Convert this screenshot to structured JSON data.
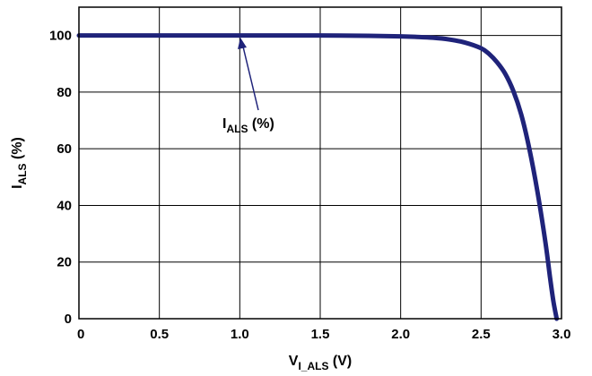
{
  "chart_data": {
    "type": "line",
    "xlabel": {
      "main": "V",
      "sub": "I_ALS",
      "unit": " (V)"
    },
    "ylabel": {
      "main": "I",
      "sub": "ALS",
      "unit": " (%)"
    },
    "xlim": [
      0,
      3.0
    ],
    "ylim": [
      0,
      110
    ],
    "xticks": [
      "0",
      "0.5",
      "1.0",
      "1.5",
      "2.0",
      "2.5",
      "3.0"
    ],
    "yticks": [
      "0",
      "20",
      "40",
      "60",
      "80",
      "100"
    ],
    "grid": true,
    "series": [
      {
        "color": "#1f237a",
        "x": [
          0,
          0.5,
          1.0,
          1.5,
          1.8,
          2.0,
          2.1,
          2.2,
          2.3,
          2.4,
          2.5,
          2.55,
          2.6,
          2.65,
          2.7,
          2.75,
          2.8,
          2.85,
          2.9,
          2.93,
          2.95,
          2.97
        ],
        "y": [
          100,
          100,
          100,
          100,
          99.9,
          99.7,
          99.5,
          99.2,
          98.6,
          97.5,
          95.5,
          93.5,
          90.5,
          86.5,
          80.5,
          72,
          60,
          45,
          27,
          14,
          6,
          0
        ]
      }
    ],
    "annotations": [
      {
        "main": "I",
        "sub": "ALS",
        "unit": " (%)",
        "x": 1.0,
        "y": 100
      }
    ]
  }
}
